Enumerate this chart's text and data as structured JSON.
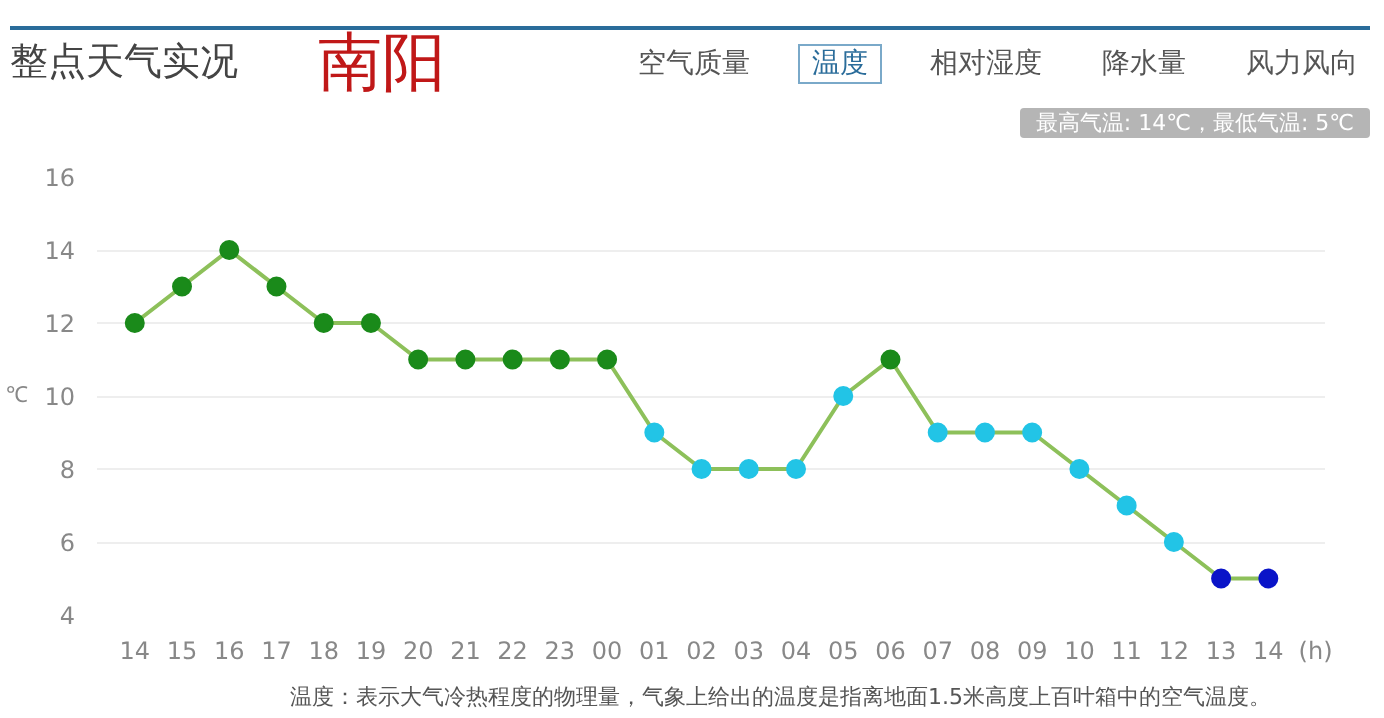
{
  "chart_data": {
    "type": "line",
    "title": "整点天气实况",
    "subtitle": "最高气温: 14℃，最低气温: 5℃",
    "annotations": [
      "南阳",
      "空气质量",
      "温度",
      "相对湿度",
      "降水量",
      "风力风向",
      "温度：表示大气冷热程度的物理量，气象上给出的温度是指离地面1.5米高度上百叶箱中的空气温度。"
    ],
    "xlabel": "(h)",
    "ylabel": "℃",
    "categories": [
      "14",
      "15",
      "16",
      "17",
      "18",
      "19",
      "20",
      "21",
      "22",
      "23",
      "00",
      "01",
      "02",
      "03",
      "04",
      "05",
      "06",
      "07",
      "08",
      "09",
      "10",
      "11",
      "12",
      "13",
      "14"
    ],
    "series": [
      {
        "color": "#8dc05a",
        "values": [
          12,
          13,
          14,
          13,
          12,
          12,
          11,
          11,
          11,
          11,
          11,
          9,
          8,
          8,
          8,
          10,
          11,
          9,
          9,
          9,
          8,
          7,
          6,
          5,
          5
        ],
        "colors": [
          "#1a8a1a",
          "#1a8a1a",
          "#1a8a1a",
          "#1a8a1a",
          "#1a8a1a",
          "#1a8a1a",
          "#1a8a1a",
          "#1a8a1a",
          "#1a8a1a",
          "#1a8a1a",
          "#1a8a1a",
          "#22c4e6",
          "#22c4e6",
          "#22c4e6",
          "#22c4e6",
          "#22c4e6",
          "#1a8a1a",
          "#22c4e6",
          "#22c4e6",
          "#22c4e6",
          "#22c4e6",
          "#22c4e6",
          "#22c4e6",
          "#0a14c8",
          "#0a14c8"
        ]
      }
    ],
    "ylim": [
      4,
      16
    ],
    "yticks": [
      4,
      6,
      8,
      10,
      12,
      14,
      16
    ],
    "grid": "y",
    "marker": "circle"
  }
}
